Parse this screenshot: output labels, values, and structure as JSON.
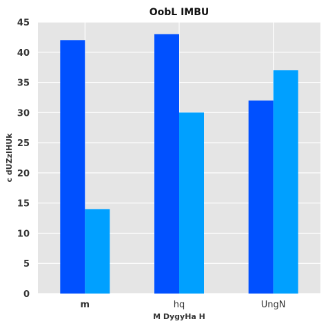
{
  "chart_data": {
    "type": "bar",
    "title": "OobL IMBU",
    "xlabel": "M DygyHa H",
    "ylabel": "c dUZzIHUk",
    "categories": [
      "m",
      "hq",
      "UngN"
    ],
    "series": [
      {
        "values": [
          42,
          43,
          32
        ],
        "color": "#0050ff"
      },
      {
        "values": [
          14,
          30,
          37
        ],
        "color": "#00a0ff"
      }
    ],
    "ylim": [
      0,
      45
    ],
    "yticks": [
      "0",
      "5",
      "10",
      "15",
      "20",
      "25",
      "30",
      "35",
      "40",
      "45"
    ],
    "grid": true,
    "plot_background": "#e5e5e5",
    "grid_color": "#ffffff"
  }
}
